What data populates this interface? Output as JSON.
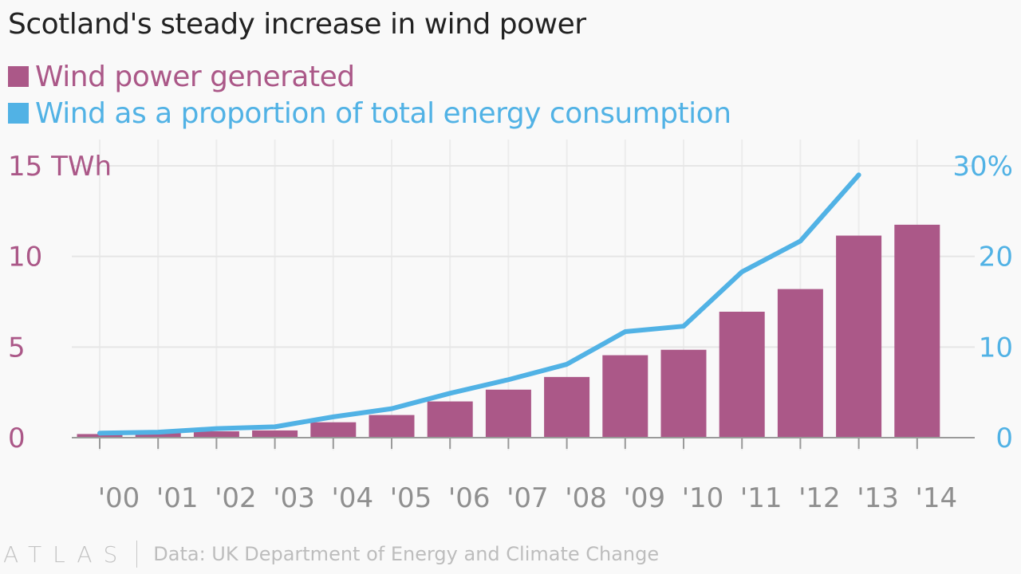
{
  "title": "Scotland's steady increase in wind power",
  "legend": [
    {
      "label": "Wind power generated",
      "color": "#ab5888"
    },
    {
      "label": "Wind as a proportion of total energy consumption",
      "color": "#51b2e5"
    }
  ],
  "footer": {
    "logo": "ATLAS",
    "source": "Data: UK Department of Energy and Climate Change"
  },
  "chart_data": {
    "type": "bar",
    "categories": [
      "'00",
      "'01",
      "'02",
      "'03",
      "'04",
      "'05",
      "'06",
      "'07",
      "'08",
      "'09",
      "'10",
      "'11",
      "'12",
      "'13",
      "'14"
    ],
    "series": [
      {
        "name": "Wind power generated",
        "type": "bar",
        "axis": "left",
        "color": "#ab5888",
        "values": [
          0.2,
          0.25,
          0.35,
          0.4,
          0.85,
          1.25,
          2.0,
          2.65,
          3.35,
          4.55,
          4.85,
          6.95,
          8.2,
          11.15,
          11.75
        ]
      },
      {
        "name": "Wind as a proportion of total energy consumption",
        "type": "line",
        "axis": "right",
        "color": "#51b2e5",
        "values": [
          0.5,
          0.6,
          1.0,
          1.2,
          2.3,
          3.2,
          4.9,
          6.4,
          8.1,
          11.7,
          12.3,
          18.3,
          21.7,
          29.0,
          null
        ]
      }
    ],
    "y_left": {
      "ylim": [
        0,
        15
      ],
      "ticks": [
        0,
        5,
        10,
        15
      ],
      "tick_labels": [
        "0",
        "5",
        "10",
        "15 TWh"
      ],
      "color": "#ab5888"
    },
    "y_right": {
      "ylim": [
        0,
        30
      ],
      "ticks": [
        0,
        10,
        20,
        30
      ],
      "tick_labels": [
        "0",
        "10",
        "20",
        "30%"
      ],
      "color": "#51b2e5"
    },
    "grid": true,
    "legend_position": "top-left"
  }
}
